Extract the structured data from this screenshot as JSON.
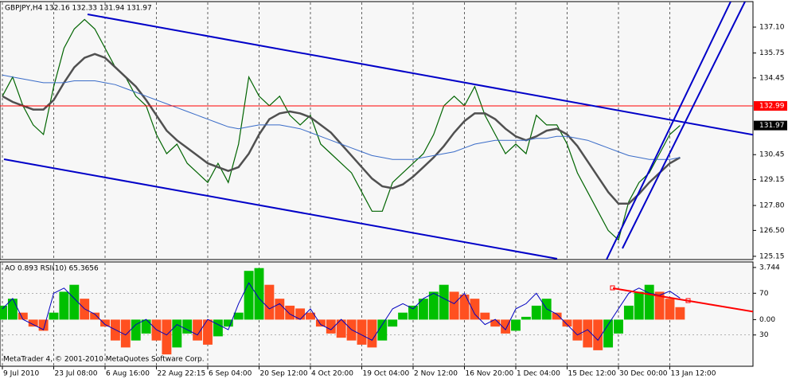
{
  "chart_data": [
    {
      "type": "line",
      "title": "GBPJPY,H4  132.16 132.33 131.94 131.97",
      "categories": [
        "9 Jul 2010",
        null,
        null,
        null,
        null,
        "23 Jul 08:00",
        null,
        null,
        null,
        null,
        "6 Aug 16:00",
        null,
        null,
        null,
        null,
        "22 Aug 22:15",
        null,
        null,
        null,
        null,
        "6 Sep 04:00",
        null,
        null,
        null,
        null,
        "20 Sep 12:00",
        null,
        null,
        null,
        null,
        "4 Oct 20:00",
        null,
        null,
        null,
        null,
        "19 Oct 04:00",
        null,
        null,
        null,
        null,
        "2 Nov 12:00",
        null,
        null,
        null,
        null,
        "16 Nov 20:00",
        null,
        null,
        null,
        null,
        "1 Dec 04:00",
        null,
        null,
        null,
        null,
        "15 Dec 12:00",
        null,
        null,
        null,
        null,
        "30 Dec 00:00",
        null,
        null,
        null,
        null,
        "13 Jan 12:00",
        null
      ],
      "series": [
        {
          "color": "#006400",
          "values": [
            133.5,
            134.5,
            133.0,
            132.0,
            131.5,
            134.0,
            136.0,
            137.0,
            137.5,
            137.0,
            136.0,
            135.0,
            134.5,
            133.5,
            133.0,
            131.5,
            130.5,
            131.0,
            130.0,
            129.5,
            129.0,
            130.0,
            129.0,
            131.0,
            134.5,
            133.5,
            133.0,
            133.5,
            132.5,
            132.0,
            132.5,
            131.0,
            130.5,
            130.0,
            129.5,
            128.5,
            127.5,
            127.5,
            129.0,
            129.5,
            130.0,
            130.5,
            131.5,
            133.0,
            133.5,
            133.0,
            134.0,
            132.5,
            131.5,
            130.5,
            131.0,
            130.5,
            132.5,
            132.0,
            132.0,
            131.0,
            129.5,
            128.5,
            127.5,
            126.5,
            126.0,
            128.0,
            129.0,
            129.5,
            130.5,
            131.5,
            131.97
          ]
        },
        {
          "color": "#505050",
          "values": [
            133.5,
            133.2,
            133.0,
            132.8,
            132.8,
            133.3,
            134.2,
            135.0,
            135.5,
            135.7,
            135.5,
            135.0,
            134.5,
            134.0,
            133.3,
            132.5,
            131.7,
            131.2,
            130.8,
            130.4,
            130.0,
            129.8,
            129.6,
            129.8,
            130.5,
            131.5,
            132.3,
            132.6,
            132.7,
            132.6,
            132.4,
            132.0,
            131.6,
            131.0,
            130.4,
            129.8,
            129.2,
            128.8,
            128.7,
            128.9,
            129.3,
            129.8,
            130.3,
            130.9,
            131.6,
            132.2,
            132.6,
            132.6,
            132.3,
            131.8,
            131.4,
            131.2,
            131.4,
            131.7,
            131.8,
            131.5,
            130.9,
            130.1,
            129.3,
            128.5,
            127.9,
            127.9,
            128.4,
            129.0,
            129.5,
            130.0,
            130.3
          ]
        },
        {
          "color": "#3a6cc8",
          "values": [
            134.6,
            134.5,
            134.4,
            134.3,
            134.2,
            134.2,
            134.2,
            134.3,
            134.3,
            134.3,
            134.2,
            134.1,
            133.9,
            133.7,
            133.5,
            133.3,
            133.1,
            132.9,
            132.7,
            132.5,
            132.3,
            132.1,
            131.9,
            131.8,
            131.9,
            132.0,
            132.0,
            132.0,
            131.9,
            131.8,
            131.6,
            131.4,
            131.2,
            131.0,
            130.8,
            130.6,
            130.4,
            130.3,
            130.2,
            130.2,
            130.2,
            130.3,
            130.4,
            130.5,
            130.6,
            130.8,
            131.0,
            131.1,
            131.2,
            131.2,
            131.2,
            131.2,
            131.3,
            131.3,
            131.4,
            131.4,
            131.3,
            131.2,
            131.0,
            130.8,
            130.6,
            130.4,
            130.3,
            130.2,
            130.2,
            130.2,
            130.3
          ]
        }
      ],
      "ylim": [
        124.98,
        138.43
      ],
      "yticks": [
        {
          "value": 137.1,
          "label": "137.10"
        },
        {
          "value": 135.75,
          "label": "135.75"
        },
        {
          "value": 134.45,
          "label": "134.45"
        },
        {
          "value": 130.45,
          "label": "130.45"
        },
        {
          "value": 129.15,
          "label": "129.15"
        },
        {
          "value": 127.8,
          "label": "127.80"
        },
        {
          "value": 126.5,
          "label": "126.50"
        },
        {
          "value": 125.15,
          "label": "125.15"
        }
      ],
      "hline": {
        "value": 132.99,
        "color": "#ff0000"
      },
      "last_price": 131.97,
      "grid": true
    },
    {
      "type": "combo",
      "title": "AO 0.893  RSI(10) 65.3656",
      "series": [
        {
          "type": "bar",
          "up_color": "#00c000",
          "down_color": "#ff5020",
          "values": [
            1.0,
            1.5,
            0.5,
            -0.5,
            -0.8,
            0.5,
            2.0,
            2.5,
            1.5,
            0.5,
            -0.5,
            -1.5,
            -2.0,
            -1.5,
            -1.0,
            -1.5,
            -2.5,
            -2.0,
            -1.0,
            -1.5,
            -1.8,
            -1.2,
            -0.5,
            0.5,
            3.5,
            3.7,
            2.5,
            1.5,
            1.0,
            0.8,
            0.5,
            -0.5,
            -1.0,
            -1.3,
            -1.5,
            -1.8,
            -2.0,
            -1.5,
            -0.5,
            0.5,
            1.0,
            1.5,
            2.0,
            2.5,
            2.0,
            1.8,
            1.5,
            0.5,
            -0.5,
            -1.0,
            -0.8,
            0.2,
            1.0,
            1.5,
            0.5,
            -0.5,
            -1.5,
            -2.0,
            -2.2,
            -2.0,
            -1.0,
            1.0,
            2.0,
            2.5,
            2.0,
            1.5,
            0.893
          ]
        },
        {
          "type": "line",
          "axis": "y2",
          "color": "#0000c0",
          "values": [
            55,
            65,
            45,
            40,
            35,
            70,
            75,
            65,
            55,
            50,
            40,
            35,
            30,
            40,
            45,
            35,
            30,
            40,
            35,
            30,
            45,
            40,
            35,
            60,
            80,
            65,
            55,
            60,
            50,
            45,
            55,
            40,
            35,
            45,
            35,
            30,
            25,
            40,
            55,
            60,
            55,
            65,
            70,
            65,
            60,
            70,
            50,
            40,
            45,
            35,
            55,
            60,
            70,
            55,
            50,
            40,
            30,
            35,
            25,
            40,
            55,
            70,
            75,
            70,
            68,
            72,
            65.3656
          ]
        }
      ],
      "ylim": [
        -3.35,
        4.14
      ],
      "yticks": [
        {
          "value": 3.744,
          "label": "3.744"
        },
        {
          "value": 0,
          "label": "0.00"
        }
      ],
      "y2lim": [
        0,
        100
      ],
      "y2ticks": [
        70,
        30
      ],
      "watermark": "MetaTrader 4, © 2001-2010 MetaQuotes Software Corp."
    }
  ]
}
